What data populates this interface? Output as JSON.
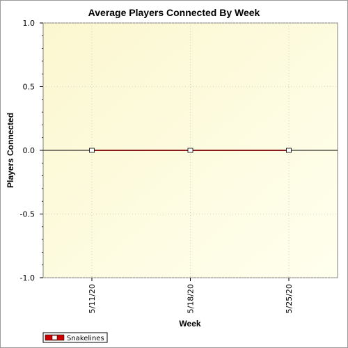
{
  "chart_data": {
    "type": "line",
    "title": "Average Players Connected By Week",
    "xlabel": "Week",
    "ylabel": "Players Connected",
    "categories": [
      "5/11/20",
      "5/18/20",
      "5/25/20"
    ],
    "series": [
      {
        "name": "Snakelines",
        "values": [
          0,
          0,
          0
        ],
        "color": "#8b1a1a"
      }
    ],
    "ylim": [
      -1.0,
      1.0
    ],
    "yticks": [
      "1.0",
      "0.5",
      "0.0",
      "-0.5",
      "-1.0"
    ],
    "grid": true,
    "legend_position": "bottom-left",
    "colors": {
      "plot_background_start": "#fdfde0",
      "plot_background_end": "#ffffd8",
      "series_line": "#8b1a1a",
      "legend_swatch": "#cc0000"
    }
  }
}
